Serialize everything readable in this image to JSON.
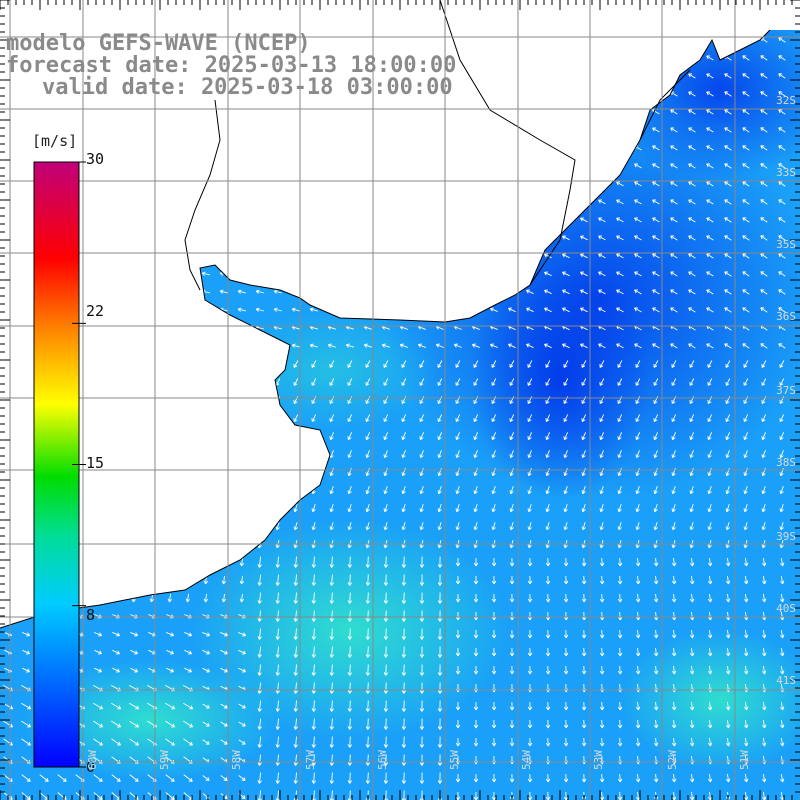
{
  "header": {
    "model": "modelo GEFS-WAVE (NCEP)",
    "forecast": "forecast date: 2025-03-13 18:00:00",
    "valid": "valid date: 2025-03-18 03:00:00"
  },
  "legend": {
    "unit": "[m/s]",
    "ticks": [
      "30",
      "22",
      "15",
      "8",
      "0"
    ],
    "tick_values": [
      30,
      22,
      15,
      8,
      0
    ],
    "range": [
      0,
      30
    ],
    "colors": [
      "#0000ff",
      "#00ccff",
      "#00dd00",
      "#ffff00",
      "#ff8800",
      "#ff0000",
      "#c0007a"
    ]
  },
  "map": {
    "lat_labels": [
      "32S",
      "33S",
      "35S",
      "36S",
      "37S",
      "38S",
      "39S",
      "40S",
      "41S"
    ],
    "lon_labels": [
      "60W",
      "59W",
      "58W",
      "57W",
      "56W",
      "55W",
      "54W",
      "53W",
      "52W",
      "51W"
    ],
    "land_color": "#ffffff",
    "grid_color": "#888888"
  }
}
